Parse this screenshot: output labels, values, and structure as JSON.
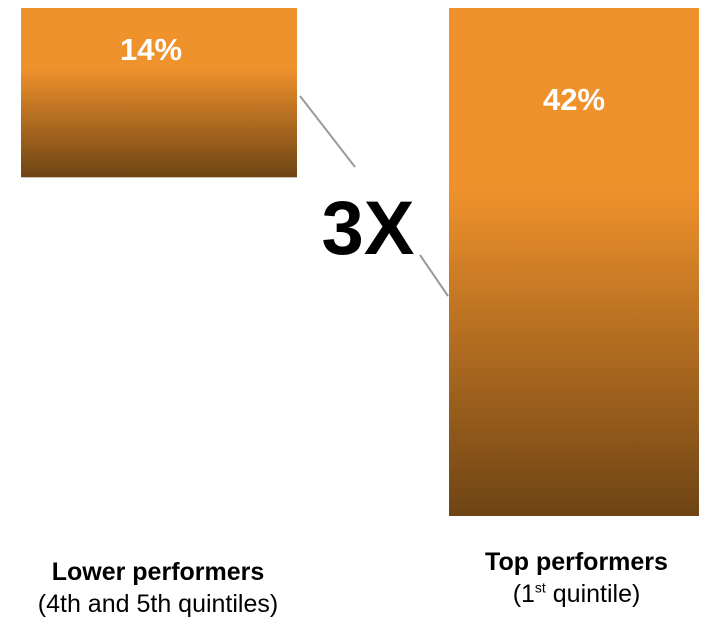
{
  "colors": {
    "bar_top": "#f0922c",
    "bar_bottom": "#6e4414",
    "connector": "#9a9a9a"
  },
  "chart_data": {
    "type": "bar",
    "categories": [
      "Lower performers",
      "Top performers"
    ],
    "category_sublabels": [
      "(4th and 5th quintiles)",
      "(1st quintile)"
    ],
    "values": [
      14,
      42
    ],
    "data_labels": [
      "14%",
      "42%"
    ],
    "annotation": "3X",
    "title": "",
    "xlabel": "",
    "ylabel": "",
    "legend": "none",
    "grid": false
  },
  "labels": {
    "lower": {
      "name": "Lower performers",
      "sub": "(4th and 5th quintiles)"
    },
    "top": {
      "name": "Top performers",
      "sub_prefix": "(1",
      "sub_sup": "st",
      "sub_suffix": " quintile)"
    }
  }
}
